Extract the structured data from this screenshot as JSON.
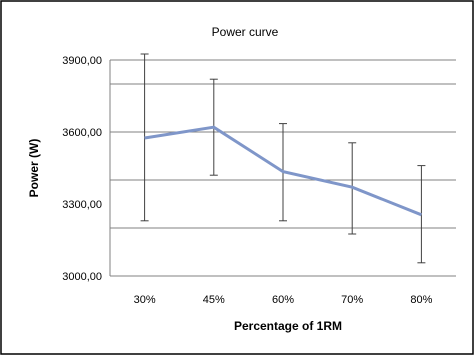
{
  "chart_data": {
    "type": "line",
    "title": "Power curve",
    "xlabel": "Percentage of 1RM",
    "ylabel": "Power (W)",
    "categories": [
      "30%",
      "45%",
      "60%",
      "70%",
      "80%"
    ],
    "values": [
      3575,
      3620,
      3435,
      3370,
      3255
    ],
    "error_upper": [
      3925,
      3820,
      3635,
      3555,
      3460
    ],
    "error_lower": [
      3230,
      3420,
      3230,
      3175,
      3055
    ],
    "ylim": [
      3000,
      3900
    ],
    "yticks": [
      "3000,00",
      "3300,00",
      "3600,00",
      "3900,00"
    ],
    "gridlines": [
      3200,
      3400,
      3600,
      3800,
      3900
    ],
    "grid": true,
    "legend": "none",
    "colors": {
      "line": "#7f96c9",
      "grid": "#808080",
      "error": "#404040",
      "frame": "#000000"
    }
  }
}
